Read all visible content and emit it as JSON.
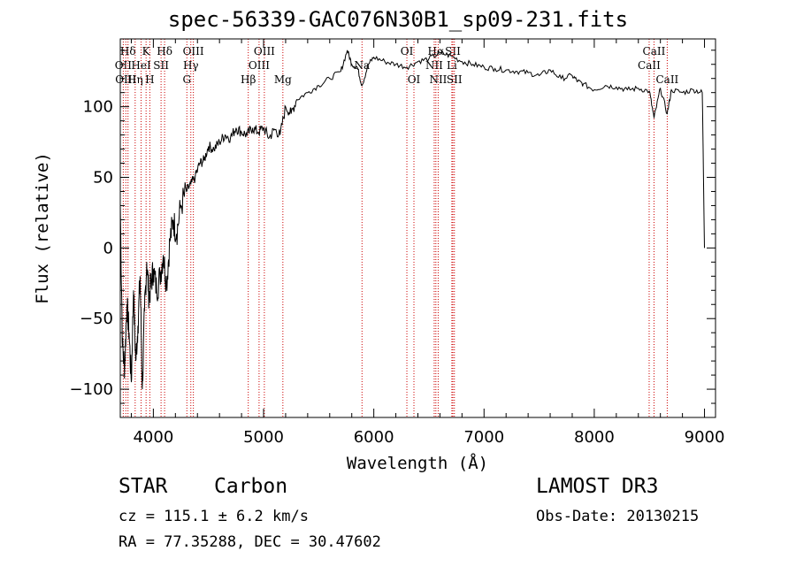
{
  "chart_data": {
    "type": "line",
    "title": "spec-56339-GAC076N30B1_sp09-231.fits",
    "xlabel": "Wavelength (Å)",
    "ylabel": "Flux (relative)",
    "xlim": [
      3700,
      9100
    ],
    "ylim": [
      -120,
      148
    ],
    "xticks": [
      4000,
      5000,
      6000,
      7000,
      8000,
      9000
    ],
    "yticks": [
      -100,
      -50,
      0,
      50,
      100
    ],
    "series": [
      {
        "name": "spectrum",
        "x": [
          3700,
          3720,
          3740,
          3760,
          3780,
          3800,
          3820,
          3840,
          3860,
          3880,
          3900,
          3920,
          3940,
          3960,
          3980,
          4000,
          4030,
          4060,
          4090,
          4120,
          4150,
          4180,
          4210,
          4250,
          4300,
          4340,
          4380,
          4420,
          4460,
          4500,
          4550,
          4600,
          4650,
          4700,
          4750,
          4800,
          4850,
          4900,
          4950,
          5000,
          5050,
          5100,
          5150,
          5200,
          5250,
          5300,
          5400,
          5500,
          5600,
          5700,
          5760,
          5800,
          5850,
          5893,
          5950,
          6000,
          6100,
          6200,
          6300,
          6400,
          6500,
          6600,
          6700,
          6800,
          6900,
          7000,
          7100,
          7200,
          7300,
          7400,
          7500,
          7600,
          7700,
          7800,
          7850,
          7900,
          8000,
          8100,
          8200,
          8300,
          8400,
          8500,
          8542,
          8600,
          8662,
          8700,
          8800,
          8900,
          8980,
          9000
        ],
        "y": [
          30,
          -70,
          -85,
          -40,
          -60,
          -95,
          -30,
          -80,
          -55,
          -20,
          -100,
          -45,
          -10,
          -35,
          -25,
          -15,
          -30,
          -20,
          -5,
          -25,
          5,
          20,
          10,
          30,
          40,
          45,
          50,
          60,
          62,
          72,
          70,
          75,
          80,
          78,
          85,
          82,
          80,
          85,
          82,
          85,
          78,
          84,
          80,
          100,
          95,
          105,
          110,
          115,
          120,
          125,
          140,
          130,
          128,
          115,
          130,
          135,
          132,
          130,
          128,
          132,
          134,
          138,
          136,
          132,
          130,
          128,
          127,
          126,
          125,
          124,
          122,
          126,
          120,
          122,
          118,
          116,
          112,
          115,
          114,
          112,
          113,
          111,
          92,
          113,
          95,
          112,
          110,
          112,
          110,
          0
        ]
      }
    ],
    "lines": [
      {
        "label": "Hδ",
        "wave": 3770,
        "row": 1
      },
      {
        "label": "OII",
        "wave": 3727,
        "row": 2
      },
      {
        "label": "OIII",
        "wave": 3750,
        "row": 3
      },
      {
        "label": "K",
        "wave": 3934,
        "row": 1
      },
      {
        "label": "HeI",
        "wave": 3889,
        "row": 2
      },
      {
        "label": "Hη",
        "wave": 3835,
        "row": 3
      },
      {
        "label": "SII",
        "wave": 4070,
        "row": 2
      },
      {
        "label": "H",
        "wave": 3968,
        "row": 3
      },
      {
        "label": "Hδ",
        "wave": 4102,
        "row": 1
      },
      {
        "label": "OIII",
        "wave": 4363,
        "row": 1
      },
      {
        "label": "Hγ",
        "wave": 4340,
        "row": 2
      },
      {
        "label": "G",
        "wave": 4304,
        "row": 3
      },
      {
        "label": "OIII",
        "wave": 5007,
        "row": 1
      },
      {
        "label": "OIII",
        "wave": 4959,
        "row": 2
      },
      {
        "label": "Hβ",
        "wave": 4861,
        "row": 3
      },
      {
        "label": "Mg",
        "wave": 5175,
        "row": 3
      },
      {
        "label": "Na",
        "wave": 5893,
        "row": 2
      },
      {
        "label": "OI",
        "wave": 6300,
        "row": 1
      },
      {
        "label": "OI",
        "wave": 6364,
        "row": 3
      },
      {
        "label": "Hα",
        "wave": 6563,
        "row": 1
      },
      {
        "label": "NII",
        "wave": 6548,
        "row": 2
      },
      {
        "label": "NII",
        "wave": 6584,
        "row": 3
      },
      {
        "label": "SII",
        "wave": 6717,
        "row": 1
      },
      {
        "label": "Li",
        "wave": 6708,
        "row": 2
      },
      {
        "label": "SII",
        "wave": 6731,
        "row": 3
      },
      {
        "label": "CaII",
        "wave": 8542,
        "row": 1
      },
      {
        "label": "CaII",
        "wave": 8498,
        "row": 2
      },
      {
        "label": "CaII",
        "wave": 8662,
        "row": 3
      }
    ]
  },
  "info": {
    "object_class": "STAR",
    "subclass": "Carbon",
    "survey": "LAMOST DR3",
    "cz": "cz = 115.1 ± 6.2 km/s",
    "obs_date": "Obs-Date: 20130215",
    "coords": "RA =  77.35288, DEC =  30.47602"
  }
}
